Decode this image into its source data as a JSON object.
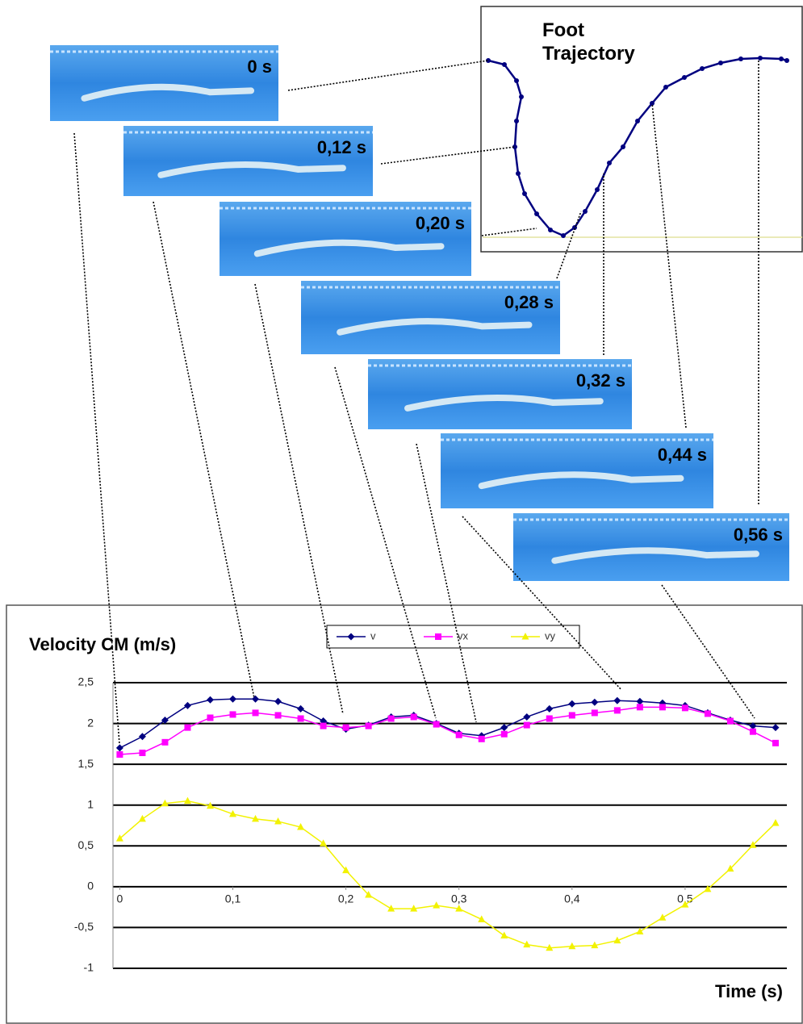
{
  "chart_data": {
    "type": "line",
    "title": "Velocity CM (m/s)",
    "x_label": "Time (s)",
    "x": [
      0,
      0.02,
      0.04,
      0.06,
      0.08,
      0.1,
      0.12,
      0.14,
      0.16,
      0.18,
      0.2,
      0.22,
      0.24,
      0.26,
      0.28,
      0.3,
      0.32,
      0.34,
      0.36,
      0.38,
      0.4,
      0.42,
      0.44,
      0.46,
      0.48,
      0.5,
      0.52,
      0.54,
      0.56,
      0.58
    ],
    "series": [
      {
        "name": "v",
        "color": "#000080",
        "marker": "diamond",
        "values": [
          1.7,
          1.84,
          2.04,
          2.22,
          2.29,
          2.3,
          2.3,
          2.27,
          2.18,
          2.03,
          1.93,
          1.98,
          2.08,
          2.1,
          2.0,
          1.88,
          1.85,
          1.95,
          2.08,
          2.18,
          2.24,
          2.26,
          2.28,
          2.27,
          2.25,
          2.22,
          2.13,
          2.04,
          1.97,
          1.95
        ]
      },
      {
        "name": "vx",
        "color": "#ff00ff",
        "marker": "square",
        "values": [
          1.62,
          1.64,
          1.77,
          1.95,
          2.07,
          2.11,
          2.13,
          2.1,
          2.06,
          1.97,
          1.95,
          1.97,
          2.06,
          2.08,
          1.99,
          1.86,
          1.81,
          1.87,
          1.98,
          2.06,
          2.1,
          2.13,
          2.16,
          2.2,
          2.2,
          2.19,
          2.12,
          2.03,
          1.9,
          1.76
        ]
      },
      {
        "name": "vy",
        "color": "#f2f200",
        "marker": "triangle",
        "values": [
          0.59,
          0.83,
          1.02,
          1.05,
          0.99,
          0.89,
          0.83,
          0.8,
          0.73,
          0.53,
          0.2,
          -0.1,
          -0.27,
          -0.27,
          -0.23,
          -0.27,
          -0.4,
          -0.6,
          -0.71,
          -0.75,
          -0.73,
          -0.72,
          -0.66,
          -0.55,
          -0.38,
          -0.22,
          -0.03,
          0.22,
          0.51,
          0.78
        ]
      }
    ],
    "xlim": [
      -0.006,
      0.59
    ],
    "ylim": [
      -1,
      2.5
    ],
    "xticks": [
      0,
      {
        "value": 0.1,
        "label": "0,1"
      },
      {
        "value": 0.2,
        "label": "0,2"
      },
      {
        "value": 0.3,
        "label": "0,3"
      },
      {
        "value": 0.4,
        "label": "0,4"
      },
      {
        "value": 0.5,
        "label": "0,5"
      }
    ],
    "yticks": [
      -1,
      {
        "value": -0.5,
        "label": "-0,5"
      },
      0,
      {
        "value": 0.5,
        "label": "0,5"
      },
      1,
      {
        "value": 1.5,
        "label": "1,5"
      },
      2,
      {
        "value": 2.5,
        "label": "2,5"
      }
    ],
    "grid": true,
    "legend": "top"
  },
  "inset": {
    "title": "Foot Trajectory"
  },
  "frames": [
    "0 s",
    "0,12 s",
    "0,20 s",
    "0,28 s",
    "0,32 s",
    "0,44 s",
    "0,56 s"
  ]
}
